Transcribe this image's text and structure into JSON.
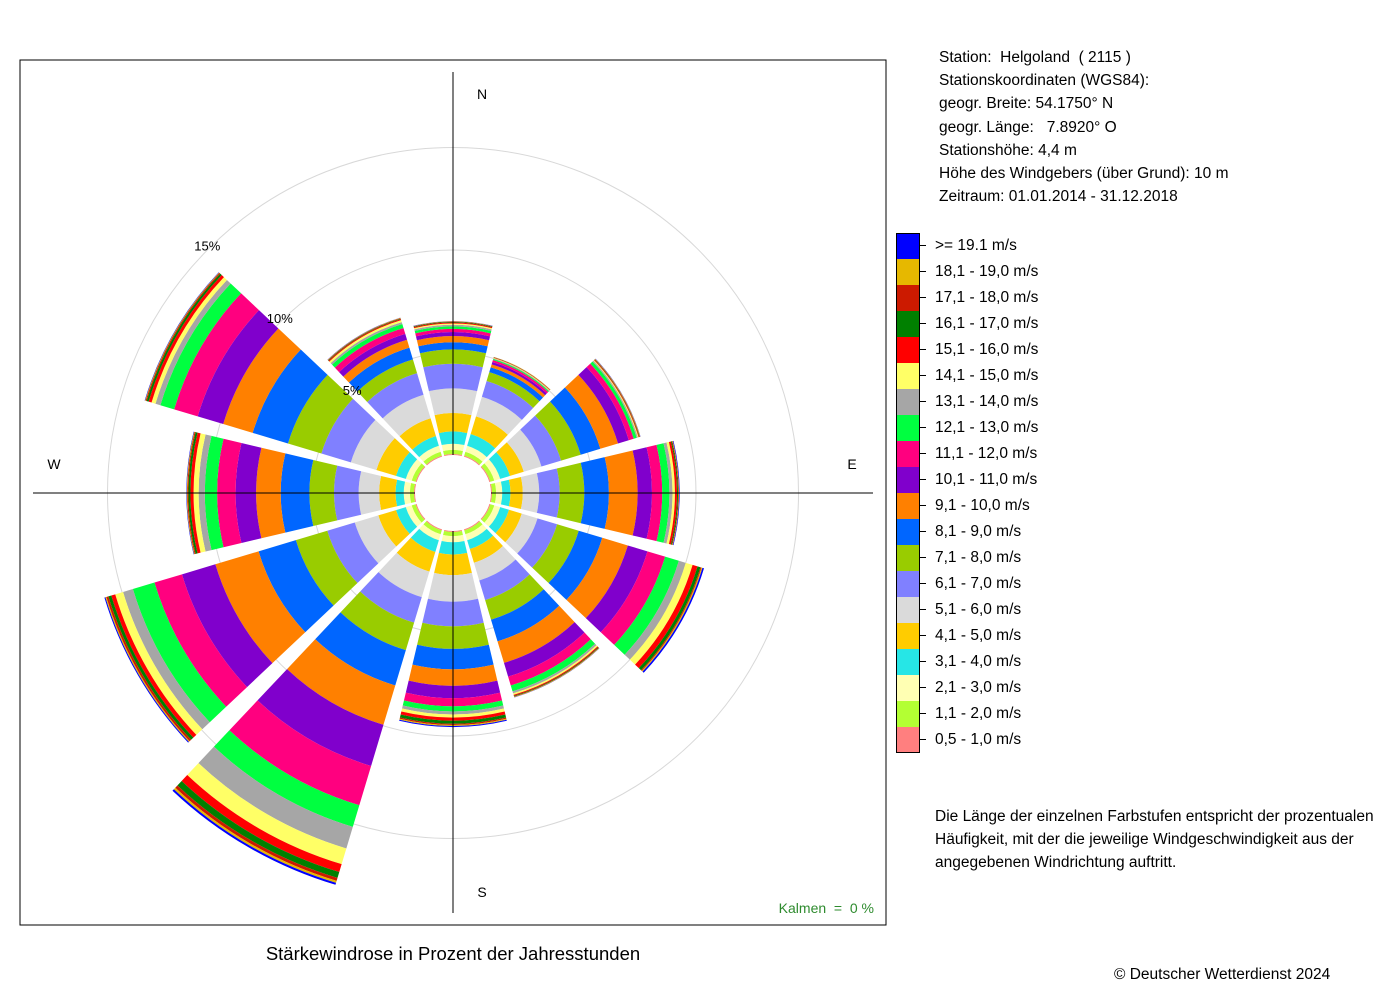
{
  "chart_data": {
    "type": "wind-rose",
    "title": "Stärkewindrose in Prozent der Jahresstunden",
    "direction_labels": {
      "N": "N",
      "E": "E",
      "S": "S",
      "W": "W"
    },
    "radial_ticks": [
      {
        "value": 5,
        "label": "5%"
      },
      {
        "value": 10,
        "label": "10%"
      },
      {
        "value": 15,
        "label": "15%"
      }
    ],
    "calm_label": "Kalmen  =  0 %",
    "speed_classes": [
      {
        "label": "0,5 - 1,0 m/s",
        "color": "#FF7F7F"
      },
      {
        "label": "1,1 - 2,0 m/s",
        "color": "#B3FF33"
      },
      {
        "label": "2,1 - 3,0 m/s",
        "color": "#FFFFB3"
      },
      {
        "label": "3,1 - 4,0 m/s",
        "color": "#26E6E6"
      },
      {
        "label": "4,1 - 5,0 m/s",
        "color": "#FFCC00"
      },
      {
        "label": "5,1 - 6,0 m/s",
        "color": "#DADADA"
      },
      {
        "label": "6,1 - 7,0 m/s",
        "color": "#8080FF"
      },
      {
        "label": "7,1 - 8,0 m/s",
        "color": "#99CC00"
      },
      {
        "label": "8,1 - 9,0 m/s",
        "color": "#0066FF"
      },
      {
        "label": "9,1 - 10,0 m/s",
        "color": "#FF8000"
      },
      {
        "label": "10,1 - 11,0 m/s",
        "color": "#8000CC"
      },
      {
        "label": "11,1 - 12,0 m/s",
        "color": "#FF007F"
      },
      {
        "label": "12,1 - 13,0 m/s",
        "color": "#00FF40"
      },
      {
        "label": "13,1 - 14,0 m/s",
        "color": "#A6A6A6"
      },
      {
        "label": "14,1 - 15,0 m/s",
        "color": "#FFFF66"
      },
      {
        "label": "15,1 - 16,0 m/s",
        "color": "#FF0000"
      },
      {
        "label": "16,1 - 17,0 m/s",
        "color": "#008000"
      },
      {
        "label": "17,1 - 18,0 m/s",
        "color": "#CC1A00"
      },
      {
        "label": "18,1 - 19,0 m/s",
        "color": "#E6B800"
      },
      {
        "label": ">= 19.1 m/s",
        "color": "#0000FF"
      }
    ],
    "sectors": [
      {
        "direction_deg": 0,
        "values": [
          0.05,
          0.2,
          0.3,
          0.6,
          0.9,
          1.2,
          1.2,
          0.7,
          0.35,
          0.3,
          0.2,
          0.15,
          0.12,
          0.08,
          0.06,
          0.05,
          0.03,
          0.02,
          0.01,
          0.01
        ]
      },
      {
        "direction_deg": 30,
        "values": [
          0.05,
          0.2,
          0.3,
          0.6,
          0.9,
          1.0,
          0.8,
          0.45,
          0.25,
          0.15,
          0.12,
          0.1,
          0.05,
          0.03,
          0.03,
          0.02,
          0.01,
          0.01,
          0.01,
          0.0
        ]
      },
      {
        "direction_deg": 60,
        "values": [
          0.05,
          0.2,
          0.3,
          0.5,
          0.7,
          0.9,
          1.0,
          1.0,
          1.0,
          0.9,
          0.55,
          0.25,
          0.15,
          0.06,
          0.04,
          0.03,
          0.02,
          0.02,
          0.02,
          0.01
        ]
      },
      {
        "direction_deg": 90,
        "values": [
          0.05,
          0.2,
          0.3,
          0.4,
          0.6,
          0.8,
          1.0,
          1.2,
          1.2,
          1.4,
          0.7,
          0.5,
          0.35,
          0.15,
          0.12,
          0.1,
          0.05,
          0.03,
          0.02,
          0.03
        ]
      },
      {
        "direction_deg": 120,
        "values": [
          0.05,
          0.2,
          0.3,
          0.45,
          0.65,
          0.8,
          1.0,
          1.1,
          1.2,
          1.3,
          1.0,
          0.9,
          0.7,
          0.35,
          0.35,
          0.25,
          0.15,
          0.05,
          0.05,
          0.08
        ]
      },
      {
        "direction_deg": 150,
        "values": [
          0.05,
          0.2,
          0.3,
          0.45,
          0.7,
          0.9,
          1.0,
          1.0,
          1.1,
          1.1,
          0.7,
          0.45,
          0.3,
          0.1,
          0.08,
          0.05,
          0.03,
          0.02,
          0.02,
          0.01
        ]
      },
      {
        "direction_deg": 180,
        "values": [
          0.05,
          0.2,
          0.3,
          0.6,
          1.0,
          1.3,
          1.2,
          1.1,
          1.0,
          0.8,
          0.6,
          0.4,
          0.25,
          0.15,
          0.15,
          0.15,
          0.15,
          0.06,
          0.05,
          0.05
        ]
      },
      {
        "direction_deg": 210,
        "values": [
          0.05,
          0.2,
          0.3,
          0.6,
          1.0,
          1.3,
          1.3,
          1.4,
          1.8,
          2.0,
          2.1,
          2.0,
          1.1,
          1.1,
          0.8,
          0.4,
          0.3,
          0.15,
          0.1,
          0.1
        ]
      },
      {
        "direction_deg": 240,
        "values": [
          0.05,
          0.2,
          0.3,
          0.5,
          0.9,
          1.2,
          1.4,
          1.6,
          1.9,
          2.2,
          1.7,
          1.4,
          1.1,
          0.5,
          0.4,
          0.2,
          0.15,
          0.1,
          0.05,
          0.05
        ]
      },
      {
        "direction_deg": 270,
        "values": [
          0.05,
          0.2,
          0.3,
          0.4,
          0.8,
          1.0,
          1.2,
          1.2,
          1.4,
          1.2,
          1.0,
          0.9,
          0.6,
          0.3,
          0.25,
          0.15,
          0.1,
          0.05,
          0.03,
          0.02
        ]
      },
      {
        "direction_deg": 300,
        "values": [
          0.05,
          0.2,
          0.3,
          0.5,
          1.0,
          1.3,
          1.5,
          1.7,
          1.8,
          1.5,
          1.3,
          1.2,
          0.7,
          0.25,
          0.2,
          0.15,
          0.1,
          0.05,
          0.03,
          0.02
        ]
      },
      {
        "direction_deg": 330,
        "values": [
          0.05,
          0.2,
          0.3,
          0.5,
          0.9,
          1.2,
          1.1,
          0.7,
          0.6,
          0.4,
          0.3,
          0.3,
          0.2,
          0.1,
          0.1,
          0.05,
          0.03,
          0.02,
          0.02,
          0.01
        ]
      }
    ]
  },
  "station": {
    "name_line": "Station:  Helgoland  ( 2115 )",
    "coords_heading": "Stationskoordinaten (WGS84):",
    "latitude_line": "geogr. Breite: 54.1750° N",
    "longitude_line": "geogr. Länge:   7.8920° O",
    "elevation_line": "Stationshöhe: 4,4 m",
    "sensor_height_line": "Höhe des Windgebers (über Grund): 10 m",
    "period_line": "Zeitraum: 01.01.2014 - 31.12.2018"
  },
  "note": "Die Länge der einzelnen Farbstufen entspricht der prozentualen Häufigkeit, mit der die jeweilige Windgeschwindigkeit aus der angegebenen Windrichtung auftritt.",
  "copyright": "© Deutscher Wetterdienst  2024"
}
